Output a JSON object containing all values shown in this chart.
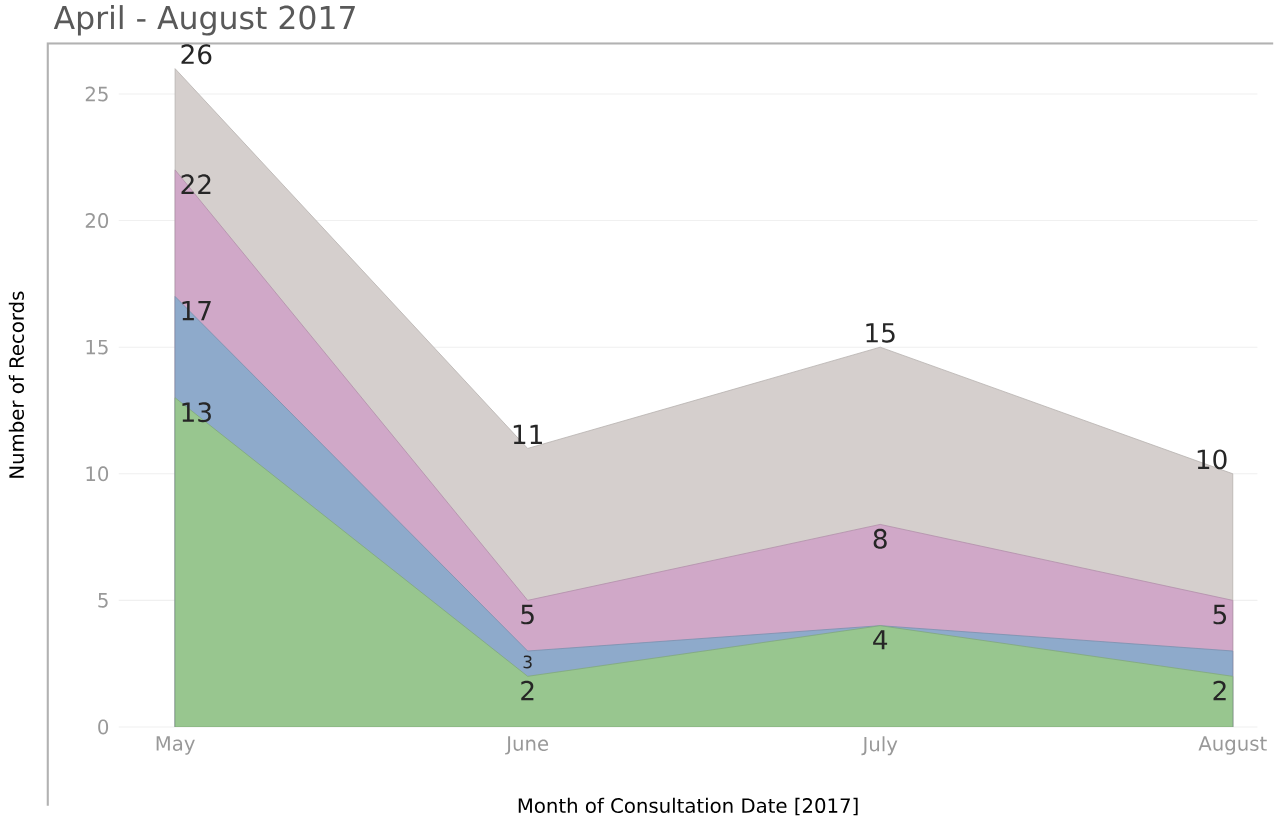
{
  "chart_data": {
    "type": "area",
    "title": "April - August 2017",
    "xlabel": "Month of Consultation Date [2017]",
    "ylabel": "Number of Records",
    "categories": [
      "May",
      "June",
      "July",
      "August"
    ],
    "ylim": [
      0,
      27
    ],
    "yticks": [
      0,
      5,
      10,
      15,
      20,
      25
    ],
    "grid": "y",
    "series": [
      {
        "color": "#98c68f",
        "values": [
          13,
          2,
          4,
          2
        ],
        "value_labels": [
          "13",
          "2",
          "4",
          "2"
        ]
      },
      {
        "color": "#8eaacb",
        "values": [
          17,
          3,
          4,
          3
        ],
        "value_labels": [
          "17",
          "3",
          null,
          null
        ]
      },
      {
        "color": "#d0a8c8",
        "values": [
          22,
          5,
          8,
          5
        ],
        "value_labels": [
          "22",
          "5",
          "8",
          "5"
        ]
      },
      {
        "color": "#d5cfcd",
        "values": [
          26,
          11,
          15,
          10
        ],
        "value_labels": [
          "26",
          "11",
          "15",
          "10"
        ]
      }
    ]
  }
}
